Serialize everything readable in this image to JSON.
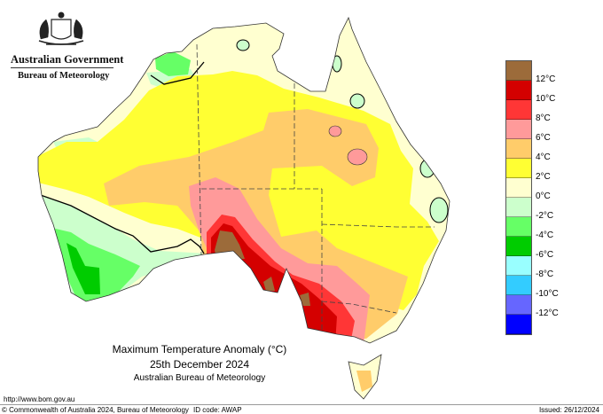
{
  "header": {
    "org": "Australian Government",
    "agency": "Bureau of Meteorology"
  },
  "map": {
    "title": "Maximum Temperature Anomaly (°C)",
    "date": "25th December 2024",
    "source": "Australian Bureau of Meteorology"
  },
  "legend": {
    "colors": [
      "#9c6b3a",
      "#d40000",
      "#ff3636",
      "#ff9a9a",
      "#ffcc6a",
      "#ffff33",
      "#ffffd0",
      "#ccffcc",
      "#66ff66",
      "#00cc00",
      "#99ffff",
      "#33ccff",
      "#6666ff",
      "#0000ff"
    ],
    "labels": [
      "12°C",
      "10°C",
      "8°C",
      "6°C",
      "4°C",
      "2°C",
      "0°C",
      "-2°C",
      "-4°C",
      "-6°C",
      "-8°C",
      "-10°C",
      "-12°C"
    ]
  },
  "footer": {
    "url": "http://www.bom.gov.au",
    "copyright": "© Commonwealth of Australia 2024, Bureau of Meteorology",
    "id_code": "ID code: AWAP",
    "issued": "Issued: 26/12/2024"
  }
}
